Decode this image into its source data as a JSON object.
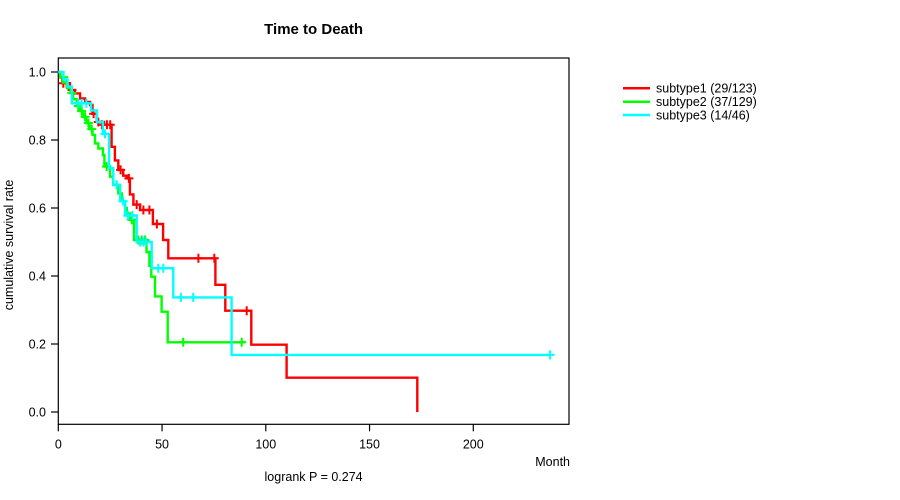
{
  "figure": {
    "background_color": "#ffffff",
    "axis_color": "#000000"
  },
  "chart_data": {
    "type": "line",
    "subtype": "kaplan-meier-step",
    "title": "Time to Death",
    "xlabel": "Month",
    "ylabel": "cumulative survival rate",
    "annotation": "logrank P = 0.274",
    "xlim": [
      0,
      246
    ],
    "ylim": [
      0.0,
      1.0
    ],
    "grid": false,
    "legend_position": "right-outside",
    "xticks": [
      {
        "v": 0,
        "label": "0"
      },
      {
        "v": 50,
        "label": "50"
      },
      {
        "v": 100,
        "label": "100"
      },
      {
        "v": 150,
        "label": "150"
      },
      {
        "v": 200,
        "label": "200"
      }
    ],
    "yticks": [
      {
        "v": 0.0,
        "label": "0.0"
      },
      {
        "v": 0.2,
        "label": "0.2"
      },
      {
        "v": 0.4,
        "label": "0.4"
      },
      {
        "v": 0.6,
        "label": "0.6"
      },
      {
        "v": 0.8,
        "label": "0.8"
      },
      {
        "v": 1.0,
        "label": "1.0"
      }
    ],
    "series": [
      {
        "name": "subtype1",
        "legend_label": "subtype1 (29/123)",
        "events_over_n": "29/123",
        "color": "#ff0000",
        "points": [
          [
            0,
            1.0
          ],
          [
            1,
            0.984
          ],
          [
            2,
            0.967
          ],
          [
            5.6,
            0.947
          ],
          [
            8,
            0.937
          ],
          [
            10.5,
            0.922
          ],
          [
            12.9,
            0.912
          ],
          [
            15.3,
            0.903
          ],
          [
            16.5,
            0.877
          ],
          [
            18.5,
            0.853
          ],
          [
            22,
            0.845
          ],
          [
            25.7,
            0.78
          ],
          [
            27.3,
            0.74
          ],
          [
            28.9,
            0.712
          ],
          [
            31.3,
            0.695
          ],
          [
            33,
            0.687
          ],
          [
            34.5,
            0.64
          ],
          [
            36.2,
            0.61
          ],
          [
            39.4,
            0.594
          ],
          [
            45.6,
            0.553
          ],
          [
            50.5,
            0.506
          ],
          [
            53,
            0.452
          ],
          [
            75.7,
            0.374
          ],
          [
            80.5,
            0.298
          ],
          [
            93,
            0.198
          ],
          [
            110,
            0.101
          ],
          [
            173,
            0.0
          ]
        ],
        "censor_marks": [
          [
            2.4,
            0.967
          ],
          [
            4,
            0.967
          ],
          [
            6.6,
            0.947
          ],
          [
            17,
            0.877
          ],
          [
            19.3,
            0.853
          ],
          [
            21,
            0.845
          ],
          [
            23.4,
            0.845
          ],
          [
            25,
            0.845
          ],
          [
            30,
            0.712
          ],
          [
            34,
            0.687
          ],
          [
            37.8,
            0.61
          ],
          [
            41,
            0.594
          ],
          [
            43.9,
            0.594
          ],
          [
            47.5,
            0.553
          ],
          [
            67.5,
            0.452
          ],
          [
            75.2,
            0.452
          ],
          [
            90.8,
            0.298
          ]
        ],
        "end_month": null
      },
      {
        "name": "subtype2",
        "legend_label": "subtype2 (37/129)",
        "events_over_n": "37/129",
        "color": "#00ff00",
        "points": [
          [
            0,
            1.0
          ],
          [
            1,
            0.985
          ],
          [
            2.2,
            0.969
          ],
          [
            4.2,
            0.953
          ],
          [
            6,
            0.938
          ],
          [
            7.2,
            0.92
          ],
          [
            8.9,
            0.9
          ],
          [
            10.5,
            0.885
          ],
          [
            12,
            0.868
          ],
          [
            13.5,
            0.85
          ],
          [
            15,
            0.832
          ],
          [
            16.5,
            0.815
          ],
          [
            17.7,
            0.79
          ],
          [
            19.3,
            0.775
          ],
          [
            21.5,
            0.756
          ],
          [
            22.2,
            0.722
          ],
          [
            24.9,
            0.692
          ],
          [
            26.5,
            0.668
          ],
          [
            28.9,
            0.643
          ],
          [
            30.6,
            0.62
          ],
          [
            32.2,
            0.6
          ],
          [
            33,
            0.584
          ],
          [
            34.6,
            0.565
          ],
          [
            36.5,
            0.506
          ],
          [
            42.5,
            0.47
          ],
          [
            43.9,
            0.43
          ],
          [
            44.8,
            0.398
          ],
          [
            46.6,
            0.34
          ],
          [
            49.8,
            0.295
          ],
          [
            52.7,
            0.205
          ]
        ],
        "censor_marks": [
          [
            2.5,
            0.985
          ],
          [
            6.5,
            0.938
          ],
          [
            9.6,
            0.9
          ],
          [
            11.3,
            0.885
          ],
          [
            12.9,
            0.868
          ],
          [
            14.5,
            0.85
          ],
          [
            16.1,
            0.832
          ],
          [
            23.3,
            0.722
          ],
          [
            28.1,
            0.668
          ],
          [
            35.4,
            0.565
          ],
          [
            38.5,
            0.506
          ],
          [
            40.2,
            0.506
          ],
          [
            41.8,
            0.506
          ],
          [
            60.2,
            0.205
          ],
          [
            88.4,
            0.205
          ]
        ],
        "end_month": 90
      },
      {
        "name": "subtype3",
        "legend_label": "subtype3 (14/46)",
        "events_over_n": "14/46",
        "color": "#00ffff",
        "points": [
          [
            0,
            1.0
          ],
          [
            2.5,
            0.978
          ],
          [
            4.5,
            0.957
          ],
          [
            6.5,
            0.908
          ],
          [
            15.8,
            0.887
          ],
          [
            18.6,
            0.853
          ],
          [
            21.5,
            0.818
          ],
          [
            24.5,
            0.717
          ],
          [
            26.5,
            0.668
          ],
          [
            29.8,
            0.62
          ],
          [
            32.2,
            0.578
          ],
          [
            37.8,
            0.5
          ],
          [
            45,
            0.423
          ],
          [
            55.4,
            0.337
          ],
          [
            83.5,
            0.168
          ]
        ],
        "censor_marks": [
          [
            9.6,
            0.908
          ],
          [
            11.3,
            0.908
          ],
          [
            13.5,
            0.908
          ],
          [
            22.5,
            0.818
          ],
          [
            28.1,
            0.668
          ],
          [
            31.3,
            0.62
          ],
          [
            33.5,
            0.578
          ],
          [
            35.7,
            0.578
          ],
          [
            39.4,
            0.5
          ],
          [
            41,
            0.5
          ],
          [
            42.3,
            0.5
          ],
          [
            48.2,
            0.423
          ],
          [
            50.6,
            0.423
          ],
          [
            59.1,
            0.337
          ],
          [
            65,
            0.337
          ],
          [
            237,
            0.168
          ]
        ],
        "end_month": 237
      }
    ]
  }
}
